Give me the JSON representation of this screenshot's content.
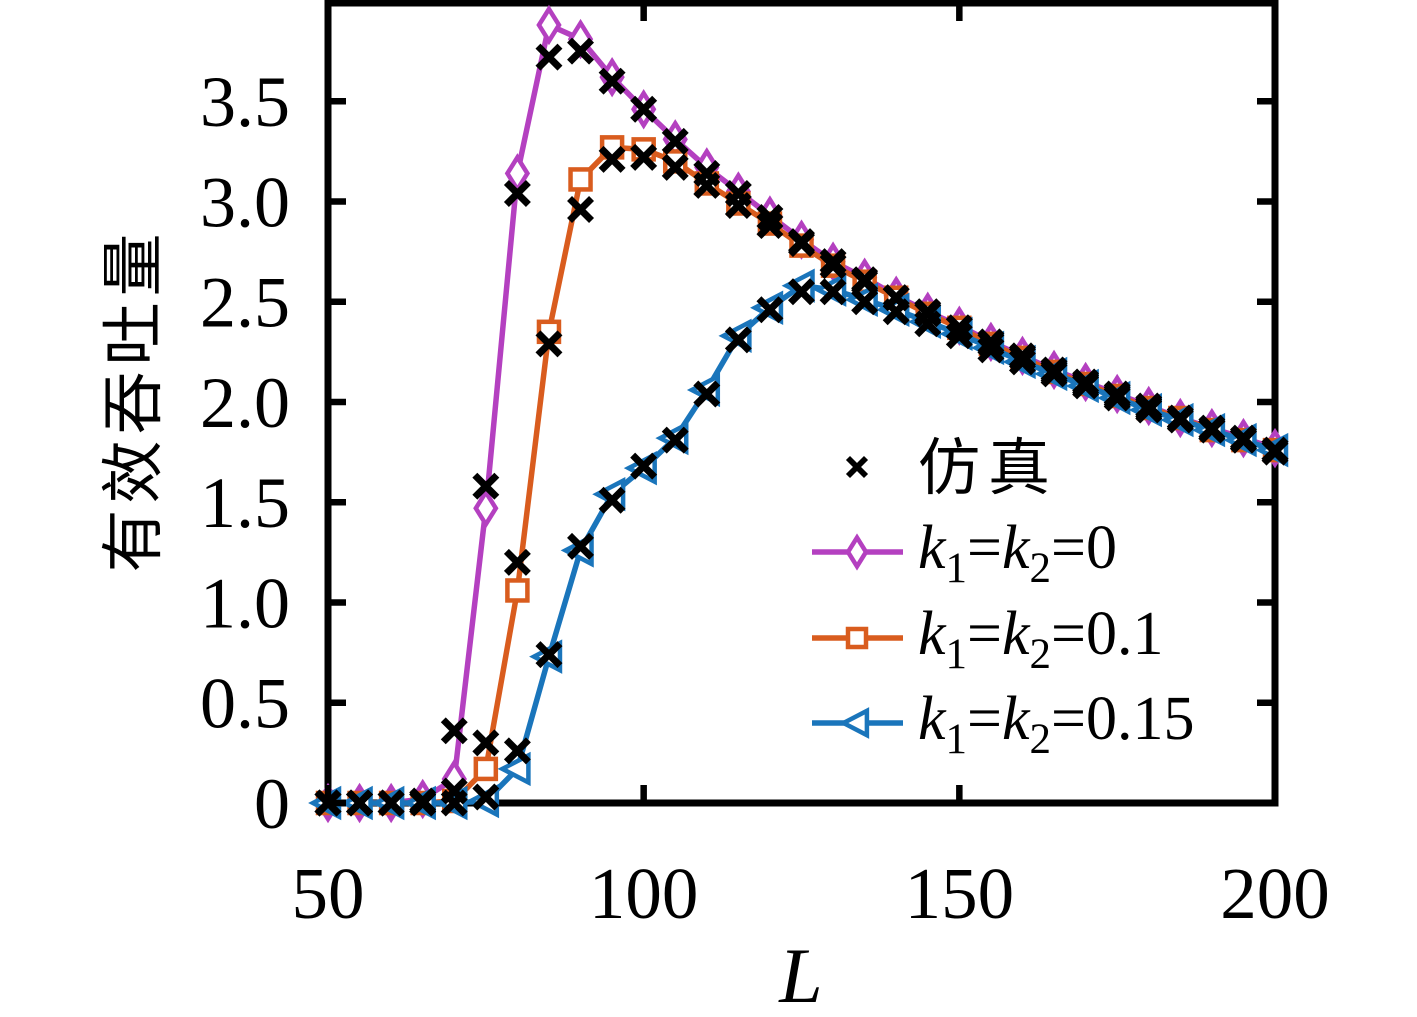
{
  "chart_data": {
    "type": "line",
    "title": "",
    "xlabel": "L",
    "ylabel": "有效吞吐量",
    "xlim": [
      50,
      200
    ],
    "ylim": [
      0,
      3.99
    ],
    "grid": false,
    "legend_position": "right-center",
    "xticks": [
      50,
      100,
      150,
      200
    ],
    "xticklabels": [
      "50",
      "100",
      "150",
      "200"
    ],
    "yticks": [
      0,
      0.5,
      1.0,
      1.5,
      2.0,
      2.5,
      3.0,
      3.5
    ],
    "yticklabels": [
      "0",
      "0.5",
      "1.0",
      "1.5",
      "2.0",
      "2.5",
      "3.0",
      "3.5"
    ],
    "x": [
      50,
      55,
      60,
      65,
      70,
      75,
      80,
      85,
      90,
      95,
      100,
      105,
      110,
      115,
      120,
      125,
      130,
      135,
      140,
      145,
      150,
      155,
      160,
      165,
      170,
      175,
      180,
      185,
      190,
      195,
      200
    ],
    "series": [
      {
        "name": "k1=k2=0",
        "legend_label": "k_1=k_2=0",
        "color": "#b440c0",
        "marker": "diamond",
        "values": [
          0,
          0,
          0,
          0.02,
          0.12,
          1.47,
          3.14,
          3.88,
          3.81,
          3.62,
          3.46,
          3.31,
          3.17,
          3.05,
          2.93,
          2.81,
          2.7,
          2.62,
          2.53,
          2.45,
          2.38,
          2.3,
          2.23,
          2.16,
          2.1,
          2.04,
          1.98,
          1.92,
          1.87,
          1.82,
          1.77
        ]
      },
      {
        "name": "k1=k2=0.1",
        "legend_label": "k_1=k_2=0.1",
        "color": "#d95c1e",
        "marker": "square",
        "values": [
          0,
          0,
          0,
          0,
          0.01,
          0.17,
          1.06,
          2.35,
          3.11,
          3.27,
          3.26,
          3.2,
          3.09,
          2.99,
          2.89,
          2.78,
          2.68,
          2.6,
          2.52,
          2.44,
          2.37,
          2.29,
          2.22,
          2.15,
          2.09,
          2.03,
          1.97,
          1.92,
          1.86,
          1.81,
          1.76
        ]
      },
      {
        "name": "k1=k2=0.15",
        "legend_label": "k_1=k_2=0.15",
        "color": "#1a75bb",
        "marker": "triangle-left",
        "values": [
          0,
          0,
          0,
          0,
          0,
          0.01,
          0.17,
          0.73,
          1.26,
          1.54,
          1.67,
          1.82,
          2.06,
          2.33,
          2.47,
          2.58,
          2.56,
          2.51,
          2.46,
          2.4,
          2.34,
          2.27,
          2.2,
          2.14,
          2.08,
          2.02,
          1.96,
          1.91,
          1.86,
          1.81,
          1.76
        ]
      }
    ],
    "simulation": {
      "legend_label": "仿真",
      "color": "#000000",
      "marker": "x",
      "series_values": [
        [
          0,
          0,
          0,
          0.01,
          0.36,
          1.58,
          3.04,
          3.72,
          3.75,
          3.6,
          3.46,
          3.3,
          3.14,
          3.04,
          2.92,
          2.8,
          2.7,
          2.61,
          2.52,
          2.45,
          2.37,
          2.3,
          2.23,
          2.16,
          2.1,
          2.04,
          1.98,
          1.92,
          1.87,
          1.82,
          1.76
        ],
        [
          0,
          0,
          0,
          0,
          0.06,
          0.3,
          1.2,
          2.29,
          2.96,
          3.21,
          3.22,
          3.17,
          3.08,
          2.98,
          2.88,
          2.79,
          2.68,
          2.6,
          2.52,
          2.44,
          2.37,
          2.29,
          2.22,
          2.15,
          2.09,
          2.03,
          1.97,
          1.92,
          1.86,
          1.81,
          1.76
        ],
        [
          0,
          0,
          0,
          0,
          0,
          0.03,
          0.26,
          0.74,
          1.28,
          1.51,
          1.68,
          1.81,
          2.04,
          2.31,
          2.46,
          2.55,
          2.55,
          2.5,
          2.45,
          2.39,
          2.33,
          2.26,
          2.2,
          2.14,
          2.08,
          2.02,
          1.96,
          1.91,
          1.86,
          1.81,
          1.75
        ]
      ]
    }
  }
}
